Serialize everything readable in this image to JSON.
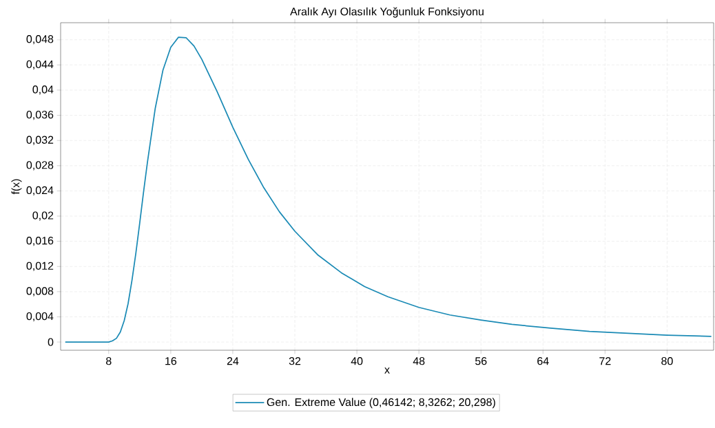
{
  "chart_data": {
    "type": "line",
    "title": "Aralık Ayı Olasılık Yoğunluk Fonksiyonu",
    "xlabel": "x",
    "ylabel": "f(x)",
    "xlim": [
      1.8,
      86
    ],
    "ylim": [
      -0.0013,
      0.0507
    ],
    "xticks": [
      8,
      16,
      24,
      32,
      40,
      48,
      56,
      64,
      72,
      80
    ],
    "yticks": [
      {
        "value": 0,
        "label": "0"
      },
      {
        "value": 0.004,
        "label": "0,004"
      },
      {
        "value": 0.008,
        "label": "0,008"
      },
      {
        "value": 0.012,
        "label": "0,012"
      },
      {
        "value": 0.016,
        "label": "0,016"
      },
      {
        "value": 0.02,
        "label": "0,02"
      },
      {
        "value": 0.024,
        "label": "0,024"
      },
      {
        "value": 0.028,
        "label": "0,028"
      },
      {
        "value": 0.032,
        "label": "0,032"
      },
      {
        "value": 0.036,
        "label": "0,036"
      },
      {
        "value": 0.04,
        "label": "0,04"
      },
      {
        "value": 0.044,
        "label": "0,044"
      },
      {
        "value": 0.048,
        "label": "0,048"
      }
    ],
    "grid": true,
    "legend": "bottom",
    "marker": "none",
    "line_style": "solid",
    "series": [
      {
        "name": "Gen. Extreme Value  (0,46142; 8,3262; 20,298)",
        "color": "#1a8ab5",
        "x": [
          2.4,
          4,
          6,
          7,
          8,
          8.5,
          9,
          9.5,
          10,
          10.5,
          11,
          11.5,
          12,
          12.5,
          13,
          14,
          15,
          16,
          17,
          18,
          19,
          20,
          22,
          24,
          26,
          28,
          30,
          32,
          35,
          38,
          41,
          44,
          48,
          52,
          56,
          60,
          65,
          70,
          75,
          80,
          85.7
        ],
        "values": [
          0,
          0,
          0,
          0,
          0,
          0.0002,
          0.0006,
          0.0016,
          0.0034,
          0.0061,
          0.0098,
          0.0141,
          0.0189,
          0.0239,
          0.0286,
          0.0371,
          0.0432,
          0.0468,
          0.0484,
          0.0483,
          0.047,
          0.0449,
          0.0397,
          0.0341,
          0.029,
          0.0245,
          0.0207,
          0.0176,
          0.0138,
          0.011,
          0.0088,
          0.0072,
          0.0055,
          0.0043,
          0.0035,
          0.0028,
          0.0022,
          0.0017,
          0.0014,
          0.0011,
          0.0009
        ]
      }
    ]
  }
}
